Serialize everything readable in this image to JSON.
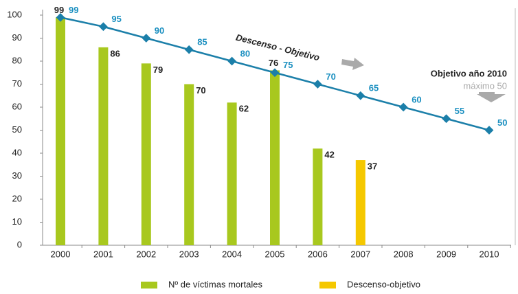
{
  "chart_data": {
    "type": "bar",
    "categories": [
      "2000",
      "2001",
      "2002",
      "2003",
      "2004",
      "2005",
      "2006",
      "2007",
      "2008",
      "2009",
      "2010"
    ],
    "series": [
      {
        "name": "Nº de víctimas mortales",
        "color": "#a8c81e",
        "values": [
          99,
          86,
          79,
          70,
          62,
          76,
          42,
          null,
          null,
          null,
          null
        ]
      },
      {
        "name": "Descenso-objetivo",
        "color": "#f5c800",
        "values": [
          null,
          null,
          null,
          null,
          null,
          null,
          null,
          37,
          null,
          null,
          null
        ]
      }
    ],
    "line": {
      "color": "#1b7fa9",
      "values": [
        99,
        95,
        90,
        85,
        80,
        75,
        70,
        65,
        60,
        55,
        50
      ]
    },
    "annotations": [
      "Descenso - Objetivo",
      "Objetivo año 2010",
      "máximo 50"
    ],
    "ylim": [
      0,
      100
    ],
    "yticks": [
      0,
      10,
      20,
      30,
      40,
      50,
      60,
      70,
      80,
      90,
      100
    ],
    "grid": false
  }
}
